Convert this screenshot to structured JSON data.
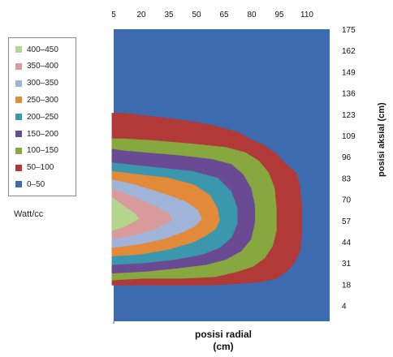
{
  "chart_data": {
    "type": "contour",
    "title": "",
    "xlabel": "posisi radial\n(cm)",
    "ylabel": "posisi aksial (cm)",
    "unit_label": "Watt/cc",
    "x_ticks": [
      "5",
      "20",
      "35",
      "50",
      "65",
      "80",
      "95",
      "110"
    ],
    "y_ticks": [
      "175",
      "162",
      "149",
      "136",
      "123",
      "109",
      "96",
      "83",
      "70",
      "57",
      "44",
      "31",
      "18",
      "4"
    ],
    "xlim": [
      5,
      115
    ],
    "ylim": [
      4,
      175
    ],
    "legend_position": "left",
    "levels": [
      {
        "label": "400-450",
        "color": "#b5d58f"
      },
      {
        "label": "350-400",
        "color": "#d89a9a"
      },
      {
        "label": "300-350",
        "color": "#a0b3d8"
      },
      {
        "label": "250-300",
        "color": "#e38a3a"
      },
      {
        "label": "200-250",
        "color": "#3b97ae"
      },
      {
        "label": "150-200",
        "color": "#6b4a94"
      },
      {
        "label": "100-150",
        "color": "#86a83e"
      },
      {
        "label": "50-100",
        "color": "#b13a38"
      },
      {
        "label": "0-50",
        "color": "#3d6bb0"
      }
    ],
    "regions": [
      {
        "level": "50-100",
        "points": [
          [
            4,
            126
          ],
          [
            4,
            25
          ],
          [
            15,
            25
          ],
          [
            35,
            25
          ],
          [
            55,
            25
          ],
          [
            70,
            26
          ],
          [
            80,
            27
          ],
          [
            88,
            29
          ],
          [
            93,
            33
          ],
          [
            97,
            38
          ],
          [
            100,
            45
          ],
          [
            101,
            56
          ],
          [
            101,
            70
          ],
          [
            100,
            83
          ],
          [
            98,
            91
          ],
          [
            93,
            96
          ],
          [
            88,
            102
          ],
          [
            82,
            107
          ],
          [
            76,
            110
          ],
          [
            68,
            115
          ],
          [
            55,
            119
          ],
          [
            40,
            122
          ],
          [
            25,
            124
          ],
          [
            10,
            126
          ]
        ]
      },
      {
        "level": "100-150",
        "points": [
          [
            4,
            111
          ],
          [
            4,
            28
          ],
          [
            20,
            29
          ],
          [
            40,
            29
          ],
          [
            57,
            30
          ],
          [
            68,
            33
          ],
          [
            76,
            36
          ],
          [
            82,
            41
          ],
          [
            86,
            48
          ],
          [
            88,
            57
          ],
          [
            88,
            70
          ],
          [
            87,
            82
          ],
          [
            84,
            91
          ],
          [
            79,
            98
          ],
          [
            72,
            103
          ],
          [
            62,
            106
          ],
          [
            45,
            108
          ],
          [
            25,
            110
          ],
          [
            10,
            111
          ]
        ]
      },
      {
        "level": "150-200",
        "points": [
          [
            4,
            105
          ],
          [
            4,
            32
          ],
          [
            20,
            33
          ],
          [
            38,
            35
          ],
          [
            52,
            37
          ],
          [
            62,
            40
          ],
          [
            70,
            45
          ],
          [
            75,
            52
          ],
          [
            77,
            62
          ],
          [
            77,
            72
          ],
          [
            75,
            82
          ],
          [
            71,
            90
          ],
          [
            65,
            96
          ],
          [
            55,
            99
          ],
          [
            40,
            101
          ],
          [
            20,
            103
          ],
          [
            10,
            104
          ]
        ]
      },
      {
        "level": "200-250",
        "points": [
          [
            4,
            97
          ],
          [
            4,
            37
          ],
          [
            20,
            38
          ],
          [
            36,
            40
          ],
          [
            50,
            43
          ],
          [
            59,
            47
          ],
          [
            65,
            53
          ],
          [
            68,
            61
          ],
          [
            68,
            70
          ],
          [
            65,
            80
          ],
          [
            58,
            88
          ],
          [
            45,
            92
          ],
          [
            28,
            94
          ],
          [
            12,
            96
          ]
        ]
      },
      {
        "level": "250-300",
        "points": [
          [
            4,
            92
          ],
          [
            4,
            42
          ],
          [
            18,
            43
          ],
          [
            33,
            46
          ],
          [
            45,
            50
          ],
          [
            52,
            54
          ],
          [
            57,
            58
          ],
          [
            59,
            63
          ],
          [
            58,
            70
          ],
          [
            54,
            78
          ],
          [
            46,
            84
          ],
          [
            33,
            88
          ],
          [
            18,
            90
          ]
        ]
      },
      {
        "level": "300-350",
        "points": [
          [
            4,
            87
          ],
          [
            4,
            47
          ],
          [
            18,
            49
          ],
          [
            30,
            52
          ],
          [
            40,
            56
          ],
          [
            47,
            60
          ],
          [
            50,
            64
          ],
          [
            48,
            69
          ],
          [
            42,
            74
          ],
          [
            30,
            79
          ],
          [
            16,
            84
          ]
        ]
      },
      {
        "level": "350-400",
        "points": [
          [
            4,
            82
          ],
          [
            4,
            52
          ],
          [
            14,
            54
          ],
          [
            24,
            57
          ],
          [
            32,
            61
          ],
          [
            35,
            64
          ],
          [
            33,
            67
          ],
          [
            27,
            71
          ],
          [
            17,
            76
          ],
          [
            8,
            80
          ]
        ]
      },
      {
        "level": "400-450",
        "points": [
          [
            4,
            77
          ],
          [
            4,
            57
          ],
          [
            10,
            59
          ],
          [
            15,
            62
          ],
          [
            18,
            64
          ],
          [
            16,
            67
          ],
          [
            11,
            71
          ],
          [
            6,
            75
          ]
        ]
      }
    ]
  }
}
